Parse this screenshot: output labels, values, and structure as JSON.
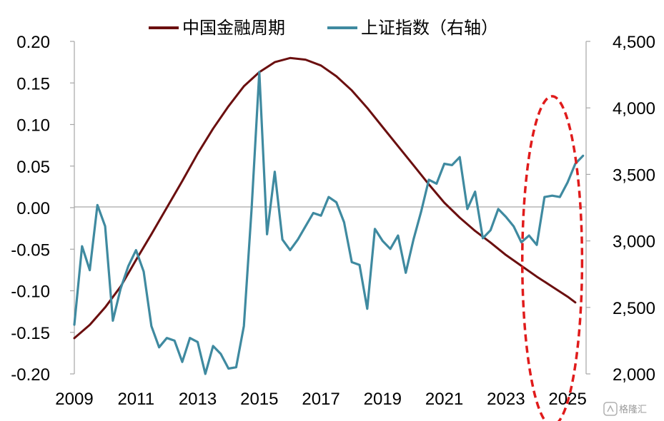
{
  "chart_data": {
    "type": "line",
    "title": "",
    "xlabel": "",
    "ylabel": "",
    "y2label": "",
    "legend_position": "top",
    "grid": false,
    "x_range": [
      2009,
      2025.6
    ],
    "x_ticks": [
      2009,
      2011,
      2013,
      2015,
      2017,
      2019,
      2021,
      2023,
      2025
    ],
    "x_tick_labels": [
      "2009",
      "2011",
      "2013",
      "2015",
      "2017",
      "2019",
      "2021",
      "2023",
      "2025"
    ],
    "ylim_left": [
      -0.2,
      0.2
    ],
    "y_left_ticks": [
      -0.2,
      -0.15,
      -0.1,
      -0.05,
      0.0,
      0.05,
      0.1,
      0.15,
      0.2
    ],
    "y_left_tick_labels": [
      "-0.20",
      "-0.15",
      "-0.10",
      "-0.05",
      "0.00",
      "0.05",
      "0.10",
      "0.15",
      "0.20"
    ],
    "ylim_right": [
      2000,
      4500
    ],
    "y_right_ticks": [
      2000,
      2500,
      3000,
      3500,
      4000,
      4500
    ],
    "y_right_tick_labels": [
      "2,000",
      "2,500",
      "3,000",
      "3,500",
      "4,000",
      "4,500"
    ],
    "series": [
      {
        "name": "中国金融周期",
        "axis": "left",
        "color": "#6b0f0f",
        "x": [
          2009.0,
          2009.5,
          2010.0,
          2010.5,
          2011.0,
          2011.5,
          2012.0,
          2012.5,
          2013.0,
          2013.5,
          2014.0,
          2014.5,
          2015.0,
          2015.5,
          2016.0,
          2016.5,
          2017.0,
          2017.5,
          2018.0,
          2018.5,
          2019.0,
          2019.5,
          2020.0,
          2020.5,
          2021.0,
          2021.5,
          2022.0,
          2022.5,
          2023.0,
          2023.5,
          2024.0,
          2024.5,
          2025.0,
          2025.25
        ],
        "values": [
          -0.157,
          -0.141,
          -0.12,
          -0.095,
          -0.063,
          -0.032,
          0.0,
          0.032,
          0.065,
          0.095,
          0.122,
          0.146,
          0.163,
          0.175,
          0.18,
          0.178,
          0.171,
          0.158,
          0.141,
          0.12,
          0.097,
          0.074,
          0.051,
          0.028,
          0.006,
          -0.012,
          -0.028,
          -0.042,
          -0.057,
          -0.07,
          -0.083,
          -0.095,
          -0.107,
          -0.114
        ]
      },
      {
        "name": "上证指数（右轴）",
        "axis": "right",
        "color": "#3f8aa0",
        "x": [
          2009.0,
          2009.25,
          2009.5,
          2009.75,
          2010.0,
          2010.25,
          2010.5,
          2010.75,
          2011.0,
          2011.25,
          2011.5,
          2011.75,
          2012.0,
          2012.25,
          2012.5,
          2012.75,
          2013.0,
          2013.25,
          2013.5,
          2013.75,
          2014.0,
          2014.25,
          2014.5,
          2014.75,
          2015.0,
          2015.25,
          2015.5,
          2015.75,
          2016.0,
          2016.25,
          2016.5,
          2016.75,
          2017.0,
          2017.25,
          2017.5,
          2017.75,
          2018.0,
          2018.25,
          2018.5,
          2018.75,
          2019.0,
          2019.25,
          2019.5,
          2019.75,
          2020.0,
          2020.25,
          2020.5,
          2020.75,
          2021.0,
          2021.25,
          2021.5,
          2021.75,
          2022.0,
          2022.25,
          2022.5,
          2022.75,
          2023.0,
          2023.25,
          2023.5,
          2023.75,
          2024.0,
          2024.25,
          2024.5,
          2024.75,
          2025.0,
          2025.25,
          2025.5
        ],
        "values": [
          2370,
          2960,
          2780,
          3270,
          3110,
          2400,
          2640,
          2810,
          2930,
          2770,
          2360,
          2200,
          2270,
          2250,
          2090,
          2270,
          2240,
          2000,
          2210,
          2150,
          2040,
          2050,
          2360,
          3240,
          4270,
          3050,
          3520,
          3010,
          2930,
          3010,
          3110,
          3210,
          3190,
          3330,
          3290,
          3140,
          2840,
          2820,
          2490,
          3090,
          3000,
          2940,
          3040,
          2760,
          3010,
          3220,
          3460,
          3430,
          3580,
          3570,
          3630,
          3240,
          3370,
          3020,
          3080,
          3240,
          3180,
          3110,
          2990,
          3040,
          2970,
          3330,
          3340,
          3330,
          3440,
          3580,
          3640
        ]
      }
    ],
    "annotations": [
      {
        "type": "dashed-ellipse",
        "color": "#e01b1b",
        "x_center": 2024.5,
        "x_half_width": 0.97,
        "y_left_center": -0.064,
        "y_left_half_height": 0.198
      }
    ]
  },
  "watermark": {
    "text": "格隆汇"
  }
}
